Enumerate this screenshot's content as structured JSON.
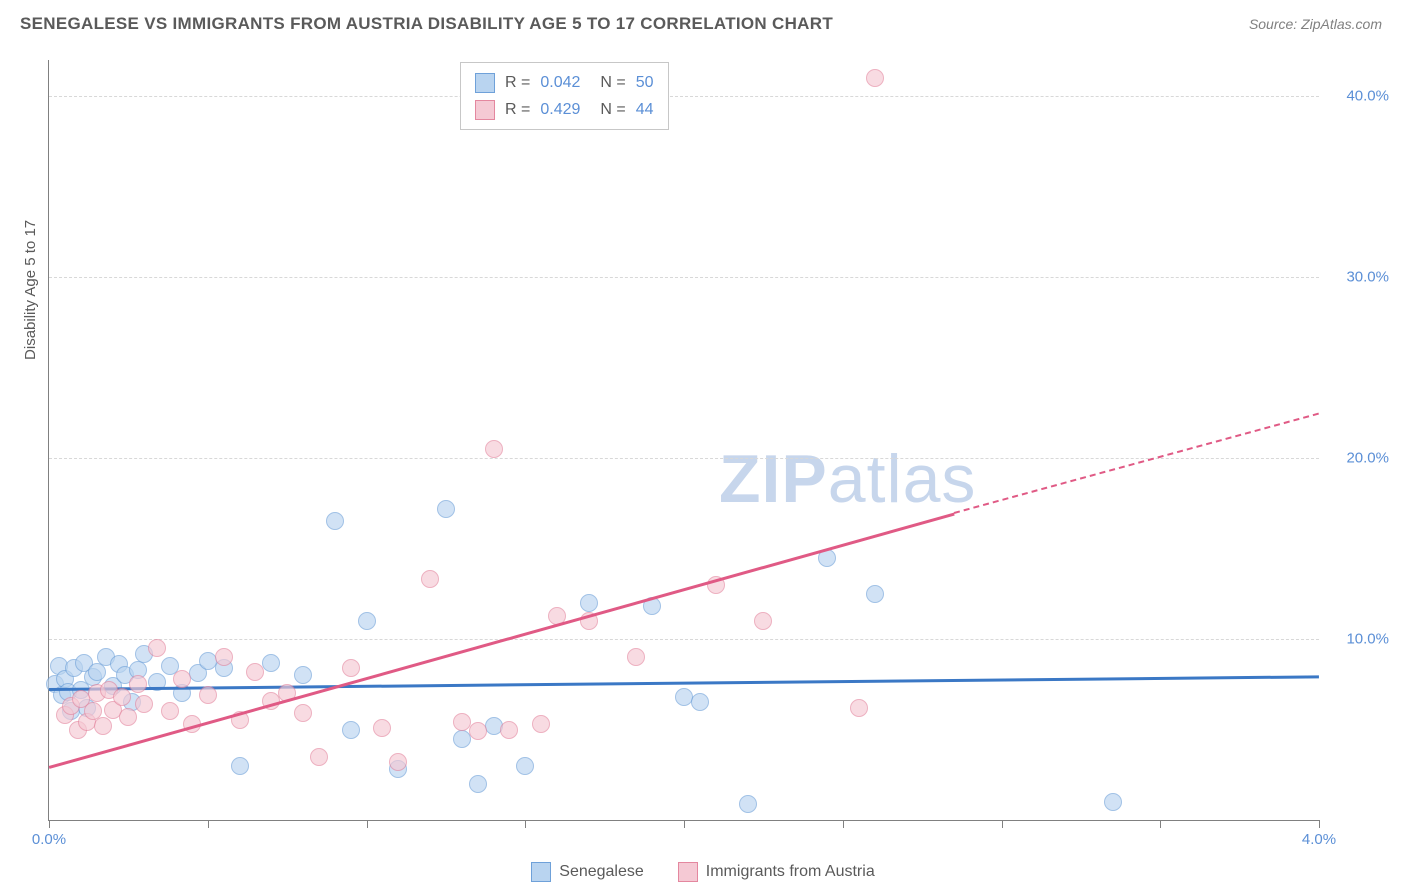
{
  "title": "SENEGALESE VS IMMIGRANTS FROM AUSTRIA DISABILITY AGE 5 TO 17 CORRELATION CHART",
  "source_label": "Source: ZipAtlas.com",
  "y_axis_title": "Disability Age 5 to 17",
  "watermark": {
    "bold": "ZIP",
    "light": "atlas"
  },
  "chart": {
    "type": "scatter",
    "xlim": [
      0.0,
      4.0
    ],
    "ylim": [
      0.0,
      42.0
    ],
    "y_gridlines": [
      10.0,
      20.0,
      30.0,
      40.0
    ],
    "y_tick_labels": [
      "10.0%",
      "20.0%",
      "30.0%",
      "40.0%"
    ],
    "x_ticks": [
      0.0,
      0.5,
      1.0,
      1.5,
      2.0,
      2.5,
      3.0,
      3.5,
      4.0
    ],
    "x_tick_labels": {
      "0.0": "0.0%",
      "4.0": "4.0%"
    },
    "background_color": "#ffffff",
    "grid_color": "#d8d8d8",
    "axis_color": "#808080",
    "label_color": "#5b8fd6",
    "series": [
      {
        "name": "Senegalese",
        "fill": "#b9d4f0",
        "stroke": "#6fa1d9",
        "line_color": "#3b78c5",
        "R": "0.042",
        "N": "50",
        "trend": {
          "x1": 0.0,
          "y1": 7.3,
          "x2": 4.0,
          "y2": 8.0,
          "dash_from": 4.0
        },
        "points": [
          [
            0.02,
            7.5
          ],
          [
            0.03,
            8.5
          ],
          [
            0.04,
            6.9
          ],
          [
            0.05,
            7.8
          ],
          [
            0.06,
            7.1
          ],
          [
            0.07,
            6.0
          ],
          [
            0.08,
            8.4
          ],
          [
            0.1,
            7.2
          ],
          [
            0.11,
            8.7
          ],
          [
            0.12,
            6.2
          ],
          [
            0.14,
            7.9
          ],
          [
            0.15,
            8.2
          ],
          [
            0.18,
            9.0
          ],
          [
            0.2,
            7.4
          ],
          [
            0.22,
            8.6
          ],
          [
            0.24,
            8.0
          ],
          [
            0.26,
            6.5
          ],
          [
            0.28,
            8.3
          ],
          [
            0.3,
            9.2
          ],
          [
            0.34,
            7.6
          ],
          [
            0.38,
            8.5
          ],
          [
            0.42,
            7.0
          ],
          [
            0.47,
            8.1
          ],
          [
            0.5,
            8.8
          ],
          [
            0.55,
            8.4
          ],
          [
            0.6,
            3.0
          ],
          [
            0.7,
            8.7
          ],
          [
            0.8,
            8.0
          ],
          [
            0.9,
            16.5
          ],
          [
            0.95,
            5.0
          ],
          [
            1.0,
            11.0
          ],
          [
            1.1,
            2.8
          ],
          [
            1.25,
            17.2
          ],
          [
            1.3,
            4.5
          ],
          [
            1.35,
            2.0
          ],
          [
            1.4,
            5.2
          ],
          [
            1.5,
            3.0
          ],
          [
            1.7,
            12.0
          ],
          [
            1.9,
            11.8
          ],
          [
            2.0,
            6.8
          ],
          [
            2.05,
            6.5
          ],
          [
            2.2,
            0.9
          ],
          [
            2.45,
            14.5
          ],
          [
            2.6,
            12.5
          ],
          [
            3.35,
            1.0
          ]
        ]
      },
      {
        "name": "Immigrants from Austria",
        "fill": "#f5c9d4",
        "stroke": "#e4879f",
        "line_color": "#e05a85",
        "R": "0.429",
        "N": "44",
        "trend": {
          "x1": 0.0,
          "y1": 3.0,
          "x2": 2.85,
          "y2": 17.0,
          "dash_from": 2.85,
          "dash_x2": 4.0,
          "dash_y2": 22.5
        },
        "points": [
          [
            0.05,
            5.8
          ],
          [
            0.07,
            6.3
          ],
          [
            0.09,
            5.0
          ],
          [
            0.1,
            6.7
          ],
          [
            0.12,
            5.4
          ],
          [
            0.14,
            6.0
          ],
          [
            0.15,
            7.0
          ],
          [
            0.17,
            5.2
          ],
          [
            0.19,
            7.2
          ],
          [
            0.2,
            6.1
          ],
          [
            0.23,
            6.8
          ],
          [
            0.25,
            5.7
          ],
          [
            0.28,
            7.5
          ],
          [
            0.3,
            6.4
          ],
          [
            0.34,
            9.5
          ],
          [
            0.38,
            6.0
          ],
          [
            0.42,
            7.8
          ],
          [
            0.45,
            5.3
          ],
          [
            0.5,
            6.9
          ],
          [
            0.55,
            9.0
          ],
          [
            0.6,
            5.5
          ],
          [
            0.65,
            8.2
          ],
          [
            0.7,
            6.6
          ],
          [
            0.75,
            7.0
          ],
          [
            0.8,
            5.9
          ],
          [
            0.85,
            3.5
          ],
          [
            0.95,
            8.4
          ],
          [
            1.05,
            5.1
          ],
          [
            1.1,
            3.2
          ],
          [
            1.2,
            13.3
          ],
          [
            1.3,
            5.4
          ],
          [
            1.35,
            4.9
          ],
          [
            1.4,
            20.5
          ],
          [
            1.45,
            5.0
          ],
          [
            1.55,
            5.3
          ],
          [
            1.6,
            11.3
          ],
          [
            1.7,
            11.0
          ],
          [
            1.85,
            9.0
          ],
          [
            2.1,
            13.0
          ],
          [
            2.25,
            11.0
          ],
          [
            2.55,
            6.2
          ],
          [
            2.6,
            41.0
          ]
        ]
      }
    ]
  },
  "legend_top": {
    "rows": [
      {
        "swatch": 0,
        "r_label": "R =",
        "r_val": "0.042",
        "n_label": "N =",
        "n_val": "50"
      },
      {
        "swatch": 1,
        "r_label": "R =",
        "r_val": "0.429",
        "n_label": "N =",
        "n_val": "44"
      }
    ]
  },
  "legend_bottom": {
    "items": [
      {
        "swatch": 0,
        "label": "Senegalese"
      },
      {
        "swatch": 1,
        "label": "Immigrants from Austria"
      }
    ]
  }
}
